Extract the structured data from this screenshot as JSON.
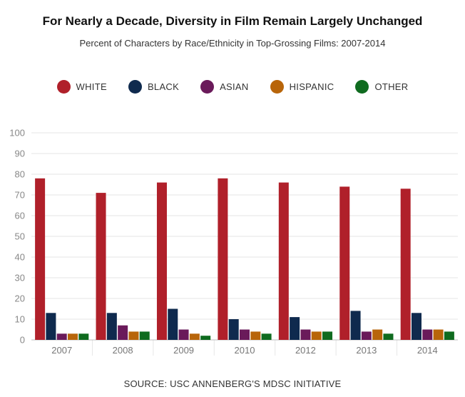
{
  "chart_data": {
    "type": "bar",
    "title": "For Nearly a Decade, Diversity in Film Remain Largely Unchanged",
    "subtitle": "Percent of Characters by Race/Ethnicity in Top-Grossing Films: 2007-2014",
    "categories": [
      "2007",
      "2008",
      "2009",
      "2010",
      "2012",
      "2013",
      "2014"
    ],
    "series": [
      {
        "name": "WHITE",
        "color": "#b0202a",
        "values": [
          78,
          71,
          76,
          78,
          76,
          74,
          73
        ]
      },
      {
        "name": "BLACK",
        "color": "#0f2a4e",
        "values": [
          13,
          13,
          15,
          10,
          11,
          14,
          13
        ]
      },
      {
        "name": "ASIAN",
        "color": "#6a1a5a",
        "values": [
          3,
          7,
          5,
          5,
          5,
          4,
          5
        ]
      },
      {
        "name": "HISPANIC",
        "color": "#b8650a",
        "values": [
          3,
          4,
          3,
          4,
          4,
          5,
          5
        ]
      },
      {
        "name": "OTHER",
        "color": "#0f6b1f",
        "values": [
          3,
          4,
          2,
          3,
          4,
          3,
          4
        ]
      }
    ],
    "ylim": [
      0,
      100
    ],
    "yticks": [
      0,
      10,
      20,
      30,
      40,
      50,
      60,
      70,
      80,
      90,
      100
    ],
    "grid": true,
    "legend": "top-center",
    "source": "SOURCE: USC ANNENBERG'S MDSC INITIATIVE"
  }
}
